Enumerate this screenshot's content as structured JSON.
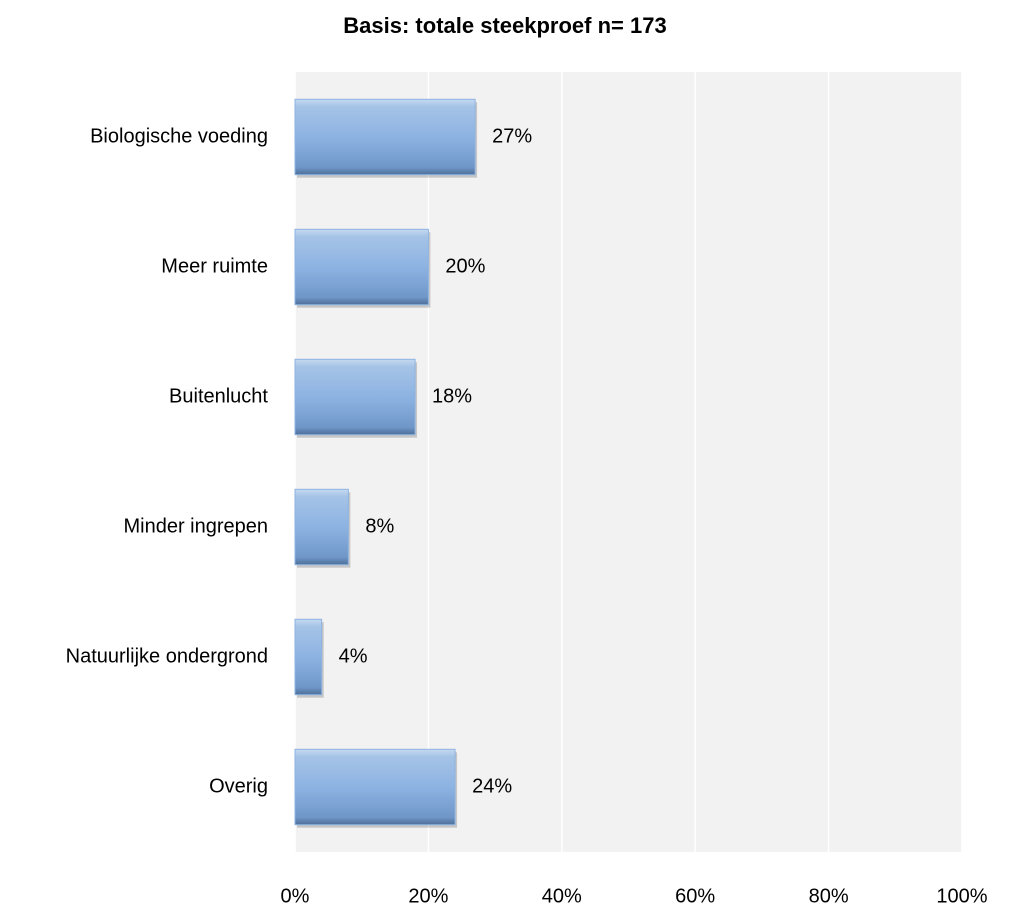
{
  "chart_data": {
    "type": "bar",
    "orientation": "horizontal",
    "title": "Basis: totale steekproef n= 173",
    "categories": [
      "Biologische voeding",
      "Meer ruimte",
      "Buitenlucht",
      "Minder ingrepen",
      "Natuurlijke ondergrond",
      "Overig"
    ],
    "values": [
      27,
      20,
      18,
      8,
      4,
      24
    ],
    "value_labels": [
      "27%",
      "20%",
      "18%",
      "8%",
      "4%",
      "24%"
    ],
    "color": "#8db3e2",
    "xlim": [
      0,
      100
    ],
    "xticks": [
      {
        "value": 0,
        "label": "0%"
      },
      {
        "value": 20,
        "label": "20%"
      },
      {
        "value": 40,
        "label": "40%"
      },
      {
        "value": 60,
        "label": "60%"
      },
      {
        "value": 80,
        "label": "80%"
      },
      {
        "value": 100,
        "label": "100%"
      }
    ],
    "grid": true
  }
}
